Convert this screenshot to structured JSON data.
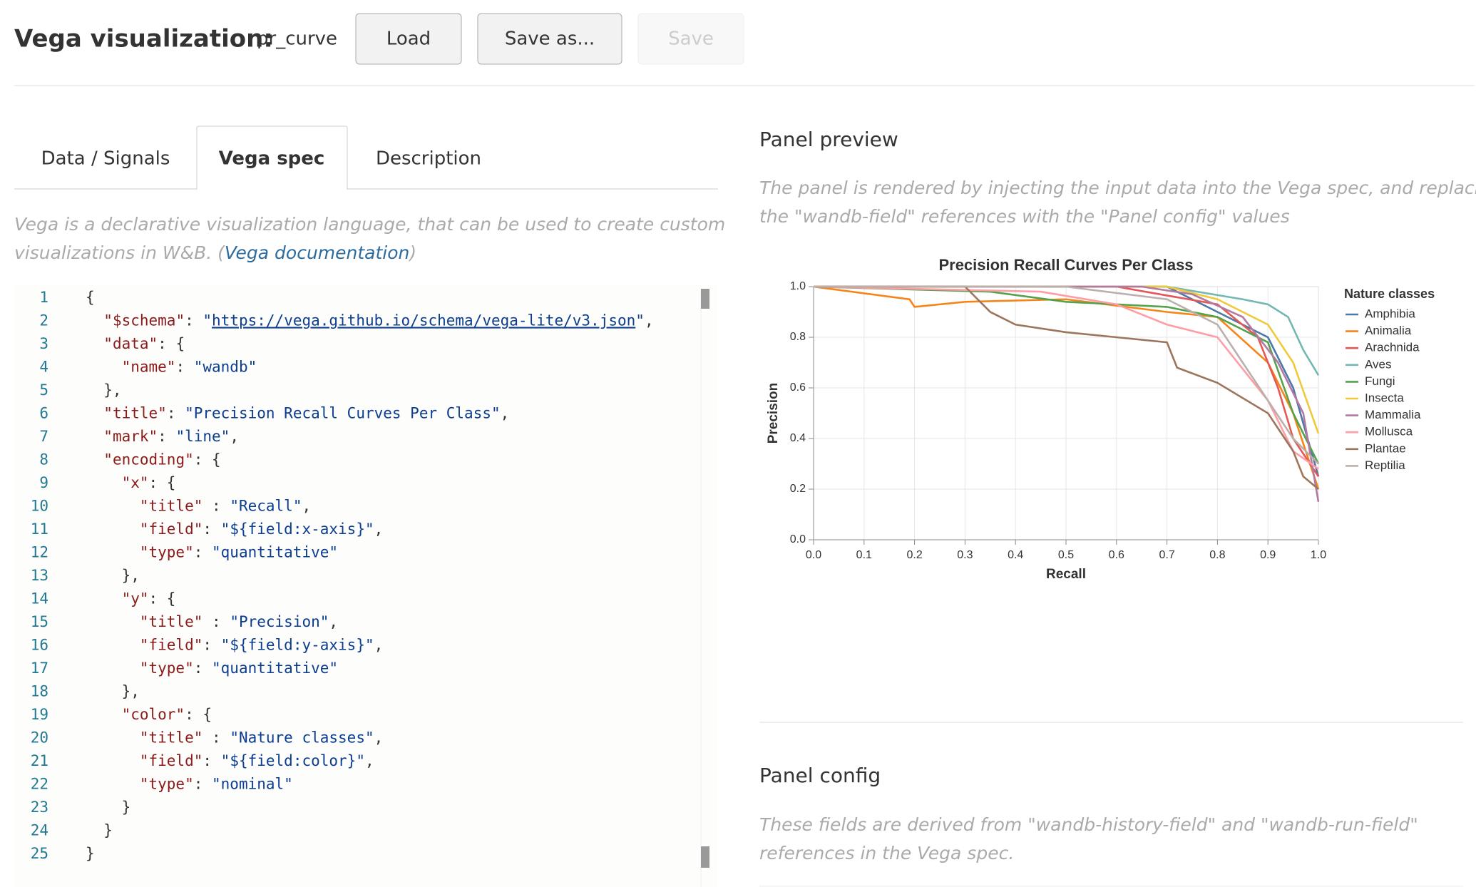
{
  "header": {
    "title": "Vega visualization:",
    "name": "pr_curve",
    "buttons": [
      "Load",
      "Save as...",
      "Save"
    ]
  },
  "tabs": [
    "Data / Signals",
    "Vega spec",
    "Description"
  ],
  "description": {
    "line1": "Vega is a declarative visualization language, that can be used to create custom",
    "line2": "visualizations in W&B. (",
    "link": "Vega documentation",
    "line2_end": ")"
  },
  "code": {
    "lines": [
      {
        "number": 1,
        "text": "{"
      },
      {
        "number": 2,
        "text": "  \"$schema\": \"https://vega.github.io/schema/vega-lite/v3.json\","
      },
      {
        "number": 3,
        "text": "  \"data\": {"
      },
      {
        "number": 4,
        "text": "    \"name\": \"wandb\""
      },
      {
        "number": 5,
        "text": "  },"
      },
      {
        "number": 6,
        "text": "  \"title\": \"Precision Recall Curves Per Class\","
      },
      {
        "number": 7,
        "text": "  \"mark\": \"line\","
      },
      {
        "number": 8,
        "text": "  \"encoding\": {"
      },
      {
        "number": 9,
        "text": "    \"x\": {"
      },
      {
        "number": 10,
        "text": "      \"title\" : \"Recall\","
      },
      {
        "number": 11,
        "text": "      \"field\": \"${field:x-axis}\","
      },
      {
        "number": 12,
        "text": "      \"type\": \"quantitative\""
      },
      {
        "number": 13,
        "text": "    },"
      },
      {
        "number": 14,
        "text": "    \"y\": {"
      },
      {
        "number": 15,
        "text": "      \"title\" : \"Precision\","
      },
      {
        "number": 16,
        "text": "      \"field\": \"${field:y-axis}\","
      },
      {
        "number": 17,
        "text": "      \"type\": \"quantitative\""
      },
      {
        "number": 18,
        "text": "    },"
      },
      {
        "number": 19,
        "text": "    \"color\": {"
      },
      {
        "number": 20,
        "text": "      \"title\" : \"Nature classes\","
      },
      {
        "number": 21,
        "text": "      \"field\": \"${field:color}\","
      },
      {
        "number": 22,
        "text": "      \"type\": \"nominal\""
      },
      {
        "number": 23,
        "text": "    }"
      },
      {
        "number": 24,
        "text": "  }"
      },
      {
        "number": 25,
        "text": "}"
      }
    ]
  },
  "preview": {
    "title": "Panel preview",
    "line1": "The panel is rendered by injecting the input data into the Vega spec, and replacing",
    "line2": "the \"wandb-field\" references with the \"Panel config\" values"
  },
  "chart_data": {
    "type": "line",
    "title": "Precision Recall Curves Per Class",
    "x_label": "Recall",
    "y_label": "Precision",
    "legend_title": "Nature classes",
    "grid": true,
    "xlim": [
      0,
      1
    ],
    "ylim": [
      0,
      1
    ],
    "xticks": [
      {
        "value": 0,
        "label": "0.0"
      },
      0.1,
      0.2,
      0.3,
      0.4,
      0.5,
      0.6,
      0.7,
      0.8,
      0.9,
      {
        "value": 1,
        "label": "1.0"
      }
    ],
    "yticks": [
      {
        "value": 0,
        "label": "0.0"
      },
      0.2,
      0.4,
      0.6,
      0.8,
      {
        "value": 1,
        "label": "1.0"
      }
    ],
    "series": [
      {
        "name": "Amphibia",
        "color": "#4c78a8",
        "x": [
          0,
          0.5,
          0.7,
          0.75,
          0.8,
          0.85,
          0.9,
          0.95,
          1.0
        ],
        "values": [
          1,
          1,
          1,
          0.95,
          0.9,
          0.85,
          0.8,
          0.6,
          0.25
        ]
      },
      {
        "name": "Animalia",
        "color": "#f58518",
        "x": [
          0,
          0.19,
          0.2,
          0.3,
          0.5,
          0.7,
          0.8,
          0.9,
          0.95,
          1.0
        ],
        "values": [
          1,
          0.95,
          0.92,
          0.94,
          0.95,
          0.9,
          0.88,
          0.7,
          0.5,
          0.2
        ]
      },
      {
        "name": "Arachnida",
        "color": "#e45756",
        "x": [
          0,
          0.6,
          0.8,
          0.88,
          0.92,
          0.95,
          1.0
        ],
        "values": [
          1,
          1,
          0.93,
          0.8,
          0.6,
          0.4,
          0.25
        ]
      },
      {
        "name": "Aves",
        "color": "#72b7b2",
        "x": [
          0,
          0.7,
          0.85,
          0.9,
          0.94,
          0.97,
          1.0
        ],
        "values": [
          1,
          1,
          0.95,
          0.93,
          0.88,
          0.75,
          0.65
        ]
      },
      {
        "name": "Fungi",
        "color": "#54a24b",
        "x": [
          0,
          0.35,
          0.5,
          0.7,
          0.8,
          0.9,
          0.95,
          1.0
        ],
        "values": [
          1,
          0.98,
          0.94,
          0.92,
          0.88,
          0.78,
          0.5,
          0.3
        ]
      },
      {
        "name": "Insecta",
        "color": "#eeca3b",
        "x": [
          0,
          0.7,
          0.8,
          0.9,
          0.95,
          1.0
        ],
        "values": [
          1,
          1,
          0.95,
          0.85,
          0.7,
          0.42
        ]
      },
      {
        "name": "Mammalia",
        "color": "#b279a2",
        "x": [
          0,
          0.65,
          0.75,
          0.85,
          0.92,
          0.97,
          1.0
        ],
        "values": [
          1,
          1,
          0.97,
          0.88,
          0.7,
          0.5,
          0.15
        ]
      },
      {
        "name": "Mollusca",
        "color": "#ff9da6",
        "x": [
          0,
          0.45,
          0.6,
          0.7,
          0.8,
          0.9,
          0.95,
          1.0
        ],
        "values": [
          1,
          0.98,
          0.93,
          0.85,
          0.8,
          0.55,
          0.35,
          0.28
        ]
      },
      {
        "name": "Plantae",
        "color": "#9d755d",
        "x": [
          0,
          0.3,
          0.35,
          0.4,
          0.5,
          0.6,
          0.7,
          0.72,
          0.8,
          0.9,
          0.95,
          0.97,
          1.0
        ],
        "values": [
          1,
          1,
          0.9,
          0.85,
          0.82,
          0.8,
          0.78,
          0.68,
          0.62,
          0.5,
          0.35,
          0.25,
          0.2
        ]
      },
      {
        "name": "Reptilia",
        "color": "#bab0ac",
        "x": [
          0,
          0.5,
          0.7,
          0.8,
          0.85,
          0.9,
          0.95,
          1.0
        ],
        "values": [
          1,
          1,
          0.95,
          0.85,
          0.7,
          0.55,
          0.4,
          0.3
        ]
      }
    ]
  },
  "config": {
    "title": "Panel config",
    "line1": "These fields are derived from \"wandb-history-field\" and \"wandb-run-field\"",
    "line2": "references in the Vega spec."
  }
}
